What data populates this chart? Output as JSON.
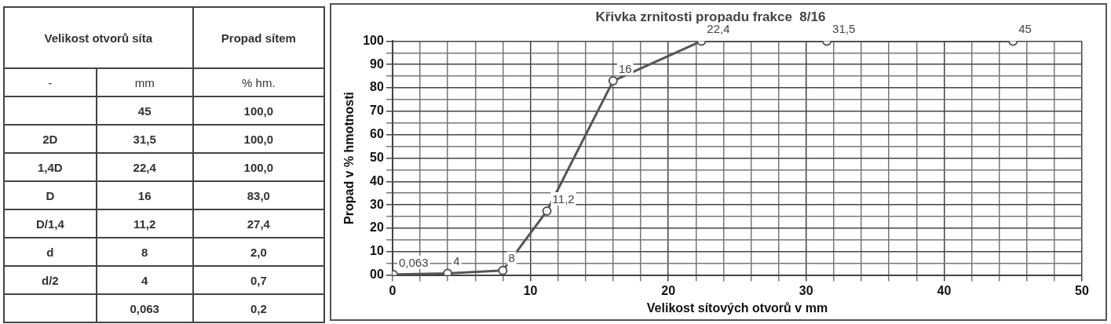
{
  "chart_data": [
    {
      "type": "other",
      "categories": [
        null,
        "2D",
        "1,4D",
        "D",
        "D/1,4",
        "d",
        "d/2",
        null
      ],
      "annotations": [
        "Velikost otvorů síta",
        "Propad sítem",
        "-",
        "mm",
        "% hm.",
        "45",
        "31,5",
        "22,4",
        "16",
        "11,2",
        "8",
        "4",
        "0,063",
        "100,0",
        "100,0",
        "100,0",
        "83,0",
        "27,4",
        "2,0",
        "0,7",
        "0,2"
      ]
    },
    {
      "type": "line",
      "title": "Křivka zrnitosti propadu frakce  8/16",
      "xlabel": "Velikost sítových otvorů v mm",
      "ylabel": "Propad v % hmotnosti",
      "x": [
        0.063,
        4,
        8,
        11.2,
        16,
        22.4,
        31.5,
        45
      ],
      "series": [
        {
          "color": "#555555",
          "values": [
            0.2,
            0.7,
            2.0,
            27.4,
            83.0,
            100.0,
            100.0,
            100.0
          ]
        }
      ],
      "marker": "circle",
      "line_style": "solid",
      "grid": true,
      "legend": false,
      "xlim": [
        0,
        50
      ],
      "xticks": [
        0,
        {
          "value": 2,
          "label": null
        },
        {
          "value": 4,
          "label": null
        },
        {
          "value": 6,
          "label": null
        },
        {
          "value": 8,
          "label": null
        },
        10,
        {
          "value": 12,
          "label": null
        },
        {
          "value": 14,
          "label": null
        },
        {
          "value": 16,
          "label": null
        },
        {
          "value": 18,
          "label": null
        },
        20,
        {
          "value": 22,
          "label": null
        },
        {
          "value": 24,
          "label": null
        },
        {
          "value": 26,
          "label": null
        },
        {
          "value": 28,
          "label": null
        },
        30,
        {
          "value": 32,
          "label": null
        },
        {
          "value": 34,
          "label": null
        },
        {
          "value": 36,
          "label": null
        },
        {
          "value": 38,
          "label": null
        },
        40,
        {
          "value": 42,
          "label": null
        },
        {
          "value": 44,
          "label": null
        },
        {
          "value": 46,
          "label": null
        },
        {
          "value": 48,
          "label": null
        },
        50
      ],
      "ylim": [
        0,
        100
      ],
      "yticks": [
        {
          "value": 0,
          "label": "00"
        },
        {
          "value": 5,
          "label": null
        },
        10,
        {
          "value": 15,
          "label": null
        },
        20,
        {
          "value": 25,
          "label": null
        },
        30,
        {
          "value": 35,
          "label": null
        },
        40,
        {
          "value": 45,
          "label": null
        },
        50,
        {
          "value": 55,
          "label": null
        },
        60,
        {
          "value": 65,
          "label": null
        },
        70,
        {
          "value": 75,
          "label": null
        },
        80,
        {
          "value": 85,
          "label": null
        },
        90,
        {
          "value": 95,
          "label": null
        },
        100
      ],
      "annotations": [
        {
          "text": "0,063",
          "x": 0.063,
          "y": 0.2
        },
        {
          "text": "4",
          "x": 4,
          "y": 0.7
        },
        {
          "text": "8",
          "x": 8,
          "y": 2.0
        },
        {
          "text": "11,2",
          "x": 11.2,
          "y": 27.4
        },
        {
          "text": "16",
          "x": 16,
          "y": 83.0
        },
        {
          "text": "22,4",
          "x": 22.4,
          "y": 100.0
        },
        {
          "text": "31,5",
          "x": 31.5,
          "y": 100.0
        },
        {
          "text": "45",
          "x": 45,
          "y": 100.0
        }
      ]
    }
  ]
}
